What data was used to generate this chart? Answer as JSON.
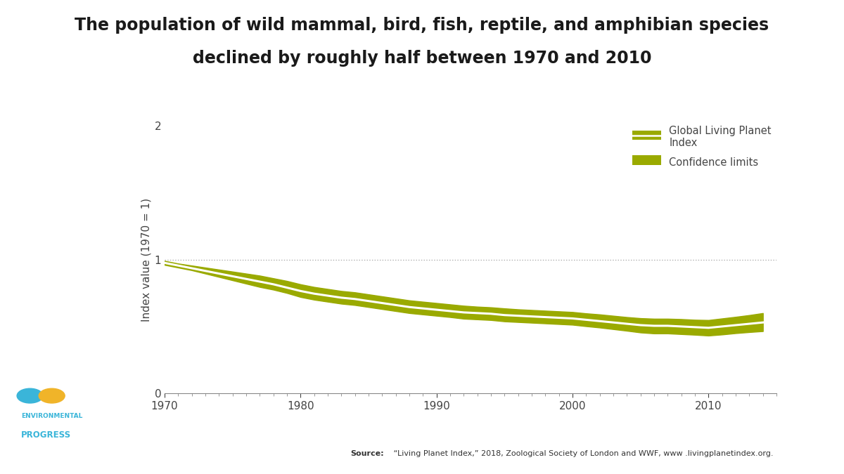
{
  "title_line1": "The population of wild mammal, bird, fish, reptile, and amphibian species",
  "title_line2": "declined by roughly half between 1970 and 2010",
  "ylabel": "Index value (1970 = 1)",
  "background_color": "#ffffff",
  "band_color": "#9aaa00",
  "line_color": "#ffffff",
  "dotted_line_color": "#b0b0b0",
  "xlim": [
    1970,
    2015
  ],
  "ylim": [
    0,
    2
  ],
  "yticks": [
    0,
    1,
    2
  ],
  "xticks": [
    1970,
    1980,
    1990,
    2000,
    2010
  ],
  "source_bold": "Source:",
  "source_rest": " “Living Planet Index,” 2018, Zoological Society of London and WWF, www .livingplanetindex.org.",
  "legend_label1": "Global Living Planet\nIndex",
  "legend_label2": "Confidence limits",
  "years": [
    1970,
    1971,
    1972,
    1973,
    1974,
    1975,
    1976,
    1977,
    1978,
    1979,
    1980,
    1981,
    1982,
    1983,
    1984,
    1985,
    1986,
    1987,
    1988,
    1989,
    1990,
    1991,
    1992,
    1993,
    1994,
    1995,
    1996,
    1997,
    1998,
    1999,
    2000,
    2001,
    2002,
    2003,
    2004,
    2005,
    2006,
    2007,
    2008,
    2009,
    2010,
    2011,
    2012,
    2013,
    2014
  ],
  "index_values": [
    0.975,
    0.955,
    0.935,
    0.915,
    0.895,
    0.875,
    0.855,
    0.835,
    0.815,
    0.79,
    0.765,
    0.745,
    0.73,
    0.715,
    0.705,
    0.69,
    0.675,
    0.66,
    0.645,
    0.635,
    0.625,
    0.615,
    0.605,
    0.6,
    0.595,
    0.585,
    0.58,
    0.575,
    0.57,
    0.565,
    0.56,
    0.55,
    0.54,
    0.53,
    0.52,
    0.51,
    0.505,
    0.505,
    0.5,
    0.495,
    0.49,
    0.5,
    0.51,
    0.52,
    0.53
  ],
  "upper_band": [
    0.99,
    0.97,
    0.955,
    0.94,
    0.925,
    0.91,
    0.895,
    0.88,
    0.86,
    0.84,
    0.815,
    0.795,
    0.78,
    0.765,
    0.755,
    0.74,
    0.725,
    0.71,
    0.695,
    0.685,
    0.675,
    0.665,
    0.655,
    0.648,
    0.643,
    0.635,
    0.628,
    0.623,
    0.618,
    0.613,
    0.608,
    0.598,
    0.59,
    0.58,
    0.57,
    0.562,
    0.558,
    0.558,
    0.555,
    0.55,
    0.548,
    0.56,
    0.572,
    0.585,
    0.6
  ],
  "lower_band": [
    0.96,
    0.94,
    0.92,
    0.895,
    0.87,
    0.845,
    0.82,
    0.795,
    0.775,
    0.75,
    0.72,
    0.7,
    0.685,
    0.67,
    0.66,
    0.645,
    0.63,
    0.615,
    0.6,
    0.59,
    0.58,
    0.57,
    0.558,
    0.553,
    0.548,
    0.538,
    0.533,
    0.528,
    0.523,
    0.518,
    0.513,
    0.502,
    0.492,
    0.48,
    0.468,
    0.455,
    0.448,
    0.448,
    0.443,
    0.438,
    0.432,
    0.44,
    0.45,
    0.458,
    0.465
  ]
}
